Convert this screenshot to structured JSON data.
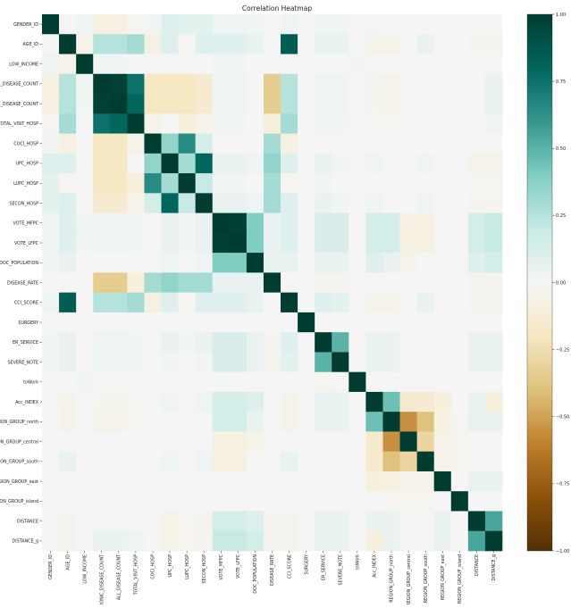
{
  "chart_data": {
    "type": "heatmap",
    "title": "Correlation Heatmap",
    "labels": [
      "GENDER_ID",
      "AGE_ID",
      "LOW_INCOME",
      "CHRONIC_DISEASE_COUNT",
      "ALL_DISEASE_COUNT",
      "TOTAL_VISIT_HOSP",
      "COCI_HOSP",
      "UPC_HOSP",
      "LUPC_HOSP",
      "SECON_HOSP",
      "VOTE_MFPC",
      "VOTE_LFPC",
      "DOC_POPULATION",
      "DISEASE_RATE",
      "CCI_SCORE",
      "SURGERY",
      "ER_SERVICE",
      "SEVERE_NOTE",
      "toWork",
      "Acc_INDEX",
      "REGION_GROUP_north",
      "REGION_GROUP_central",
      "REGION_GROUP_south",
      "REGION_GROUP_east",
      "REGION_GROUP_island",
      "DISTANCE",
      "DISTANCE_g"
    ],
    "colorbar": {
      "min": -1.0,
      "max": 1.0,
      "ticks": [
        "1.00",
        "0.75",
        "0.50",
        "0.25",
        "0.00",
        "−0.25",
        "−0.50",
        "−0.75",
        "−1.00"
      ]
    },
    "colormap": [
      "#543005",
      "#8c510a",
      "#bf812d",
      "#dfc27d",
      "#f6e8c3",
      "#f5f5f5",
      "#c7eae5",
      "#80cdc1",
      "#35978f",
      "#01665e",
      "#003c30"
    ],
    "values": [
      [
        1.0,
        0.0,
        0.03,
        -0.08,
        -0.08,
        -0.02,
        0.02,
        0.1,
        0.08,
        0.08,
        0.03,
        0.03,
        0.02,
        0.0,
        0.03,
        0.0,
        0.02,
        0.02,
        0.0,
        0.01,
        0.0,
        0.0,
        0.0,
        0.0,
        0.0,
        0.0,
        0.0
      ],
      [
        0.0,
        1.0,
        -0.05,
        0.25,
        0.25,
        0.3,
        -0.08,
        0.1,
        -0.02,
        0.1,
        0.1,
        0.1,
        0.05,
        0.0,
        0.85,
        0.0,
        0.05,
        0.05,
        0.0,
        -0.05,
        -0.05,
        0.0,
        0.05,
        0.0,
        0.0,
        -0.03,
        -0.03
      ],
      [
        0.03,
        -0.05,
        1.0,
        0.02,
        0.02,
        0.0,
        0.0,
        0.0,
        0.0,
        0.0,
        0.02,
        0.02,
        0.0,
        0.0,
        0.0,
        0.0,
        0.0,
        0.0,
        0.02,
        0.0,
        0.0,
        0.0,
        0.0,
        0.0,
        0.0,
        0.0,
        0.0
      ],
      [
        -0.08,
        0.25,
        0.02,
        1.0,
        0.98,
        0.75,
        -0.2,
        -0.2,
        -0.2,
        -0.15,
        0.03,
        0.03,
        0.0,
        -0.35,
        0.25,
        0.0,
        0.03,
        0.03,
        0.0,
        -0.03,
        -0.05,
        0.0,
        0.0,
        0.0,
        0.0,
        0.0,
        0.05
      ],
      [
        -0.08,
        0.25,
        0.02,
        0.98,
        1.0,
        0.8,
        -0.2,
        -0.2,
        -0.2,
        -0.15,
        0.03,
        0.03,
        0.0,
        -0.35,
        0.25,
        0.0,
        0.03,
        0.03,
        0.0,
        -0.03,
        -0.05,
        0.0,
        0.0,
        0.0,
        0.0,
        0.0,
        0.05
      ],
      [
        -0.02,
        0.3,
        0.0,
        0.75,
        0.8,
        1.0,
        -0.05,
        0.0,
        -0.1,
        -0.05,
        0.02,
        0.02,
        0.0,
        -0.1,
        0.3,
        0.0,
        0.02,
        0.02,
        0.0,
        -0.02,
        -0.02,
        0.0,
        0.0,
        0.0,
        0.0,
        0.0,
        0.03
      ],
      [
        0.02,
        -0.08,
        0.0,
        -0.2,
        -0.2,
        -0.05,
        1.0,
        0.35,
        0.65,
        0.15,
        0.0,
        0.0,
        0.0,
        0.3,
        -0.08,
        0.0,
        0.0,
        0.0,
        0.0,
        0.0,
        0.0,
        0.0,
        0.0,
        0.0,
        0.0,
        0.0,
        0.0
      ],
      [
        0.1,
        0.1,
        0.0,
        -0.2,
        -0.2,
        0.0,
        0.35,
        1.0,
        0.3,
        0.8,
        0.05,
        0.05,
        0.03,
        0.35,
        0.1,
        0.0,
        0.05,
        0.02,
        0.0,
        0.03,
        0.0,
        0.0,
        0.03,
        0.0,
        0.0,
        -0.05,
        -0.05
      ],
      [
        0.08,
        -0.02,
        0.0,
        -0.2,
        -0.2,
        -0.1,
        0.65,
        0.3,
        1.0,
        0.2,
        0.02,
        0.02,
        0.0,
        0.3,
        -0.02,
        0.0,
        0.02,
        0.0,
        0.0,
        0.0,
        0.0,
        0.0,
        0.0,
        0.0,
        0.0,
        -0.02,
        -0.02
      ],
      [
        0.08,
        0.1,
        0.0,
        -0.15,
        -0.15,
        -0.05,
        0.15,
        0.8,
        0.2,
        1.0,
        0.05,
        0.05,
        0.03,
        0.3,
        0.1,
        0.0,
        0.05,
        0.02,
        0.0,
        0.03,
        0.0,
        0.0,
        0.03,
        0.0,
        0.0,
        -0.03,
        -0.03
      ],
      [
        0.03,
        0.1,
        0.02,
        0.03,
        0.03,
        0.02,
        0.0,
        0.05,
        0.02,
        0.05,
        1.0,
        0.98,
        0.4,
        0.05,
        0.1,
        0.0,
        0.12,
        0.12,
        0.0,
        0.15,
        0.15,
        -0.08,
        -0.08,
        0.0,
        0.0,
        0.15,
        0.2
      ],
      [
        0.03,
        0.1,
        0.02,
        0.03,
        0.03,
        0.02,
        0.0,
        0.05,
        0.02,
        0.05,
        0.98,
        1.0,
        0.4,
        0.05,
        0.1,
        0.0,
        0.12,
        0.12,
        0.0,
        0.15,
        0.15,
        -0.08,
        -0.08,
        0.0,
        0.0,
        0.15,
        0.2
      ],
      [
        0.02,
        0.05,
        0.0,
        0.0,
        0.0,
        0.0,
        0.0,
        0.03,
        0.0,
        0.03,
        0.4,
        0.4,
        1.0,
        0.05,
        0.05,
        0.0,
        0.05,
        0.05,
        0.0,
        0.1,
        0.05,
        -0.05,
        0.0,
        0.0,
        0.0,
        0.1,
        0.15
      ],
      [
        0.0,
        0.0,
        0.0,
        -0.35,
        -0.35,
        -0.1,
        0.3,
        0.35,
        0.3,
        0.3,
        0.05,
        0.05,
        0.05,
        1.0,
        0.0,
        0.0,
        -0.03,
        -0.03,
        0.0,
        0.0,
        0.0,
        0.0,
        0.0,
        0.0,
        0.0,
        -0.03,
        -0.03
      ],
      [
        0.03,
        0.85,
        0.0,
        0.25,
        0.25,
        0.3,
        -0.08,
        0.1,
        -0.02,
        0.1,
        0.1,
        0.1,
        0.05,
        0.0,
        1.0,
        0.0,
        0.1,
        0.08,
        0.0,
        -0.05,
        -0.05,
        0.0,
        0.05,
        0.0,
        0.0,
        -0.03,
        -0.03
      ],
      [
        0.0,
        0.0,
        0.0,
        0.0,
        0.0,
        0.0,
        0.0,
        0.0,
        0.0,
        0.0,
        0.0,
        0.0,
        0.0,
        0.0,
        0.0,
        1.0,
        0.0,
        0.0,
        0.0,
        0.0,
        0.0,
        0.0,
        0.0,
        0.0,
        0.0,
        0.0,
        0.0
      ],
      [
        0.02,
        0.05,
        0.0,
        0.03,
        0.03,
        0.02,
        0.0,
        0.05,
        0.02,
        0.05,
        0.12,
        0.12,
        0.05,
        -0.03,
        0.1,
        0.0,
        1.0,
        0.5,
        -0.02,
        0.05,
        0.05,
        0.0,
        0.0,
        0.0,
        0.0,
        0.05,
        0.05
      ],
      [
        0.02,
        0.05,
        0.0,
        0.03,
        0.03,
        0.02,
        0.0,
        0.02,
        0.0,
        0.02,
        0.12,
        0.12,
        0.05,
        -0.03,
        0.08,
        0.0,
        0.5,
        1.0,
        0.0,
        0.05,
        0.05,
        0.0,
        0.0,
        0.0,
        0.0,
        0.05,
        0.05
      ],
      [
        0.0,
        0.0,
        0.02,
        0.0,
        0.0,
        0.0,
        0.0,
        0.0,
        0.0,
        0.0,
        0.0,
        0.0,
        0.0,
        0.0,
        0.0,
        0.0,
        -0.02,
        0.0,
        1.0,
        0.0,
        0.0,
        0.0,
        0.0,
        0.0,
        0.0,
        0.0,
        0.0
      ],
      [
        0.01,
        -0.05,
        0.0,
        -0.03,
        -0.03,
        -0.02,
        0.0,
        0.03,
        0.0,
        0.03,
        0.15,
        0.15,
        0.1,
        0.0,
        -0.05,
        0.0,
        0.05,
        0.05,
        0.0,
        1.0,
        0.45,
        -0.15,
        -0.15,
        -0.1,
        0.0,
        0.05,
        -0.1
      ],
      [
        0.0,
        -0.05,
        0.0,
        -0.05,
        -0.05,
        -0.02,
        0.0,
        0.0,
        0.0,
        0.0,
        0.15,
        0.15,
        0.05,
        0.0,
        -0.05,
        0.0,
        0.05,
        0.05,
        0.0,
        0.45,
        1.0,
        -0.55,
        -0.4,
        -0.08,
        -0.02,
        0.05,
        0.05
      ],
      [
        0.0,
        0.0,
        0.0,
        0.0,
        0.0,
        0.0,
        0.0,
        0.0,
        0.0,
        0.0,
        -0.08,
        -0.08,
        -0.05,
        0.0,
        0.0,
        0.0,
        0.0,
        0.0,
        0.0,
        -0.15,
        -0.55,
        1.0,
        -0.3,
        -0.05,
        -0.02,
        0.0,
        0.0
      ],
      [
        0.0,
        0.05,
        0.0,
        0.0,
        0.0,
        0.0,
        0.0,
        0.03,
        0.0,
        0.03,
        -0.08,
        -0.08,
        0.0,
        0.0,
        0.05,
        0.0,
        0.0,
        0.0,
        0.0,
        -0.15,
        -0.4,
        -0.3,
        1.0,
        -0.05,
        -0.02,
        0.0,
        0.0
      ],
      [
        0.0,
        0.0,
        0.0,
        0.0,
        0.0,
        0.0,
        0.0,
        0.0,
        0.0,
        0.0,
        0.0,
        0.0,
        0.0,
        0.0,
        0.0,
        0.0,
        0.0,
        0.0,
        0.0,
        -0.1,
        -0.08,
        -0.05,
        -0.05,
        1.0,
        0.0,
        0.05,
        0.05
      ],
      [
        0.0,
        0.0,
        0.0,
        0.0,
        0.0,
        0.0,
        0.0,
        0.0,
        0.0,
        0.0,
        0.0,
        0.0,
        0.0,
        0.0,
        0.0,
        0.0,
        0.0,
        0.0,
        0.0,
        0.0,
        -0.02,
        -0.02,
        -0.02,
        0.0,
        1.0,
        0.0,
        0.0
      ],
      [
        0.0,
        -0.03,
        0.0,
        0.0,
        0.0,
        0.0,
        0.0,
        -0.05,
        -0.02,
        -0.03,
        0.15,
        0.15,
        0.1,
        -0.03,
        -0.03,
        0.0,
        0.05,
        0.05,
        0.0,
        0.05,
        0.05,
        0.0,
        0.0,
        0.05,
        0.0,
        1.0,
        0.55
      ],
      [
        0.0,
        -0.03,
        0.0,
        0.05,
        0.05,
        0.03,
        0.0,
        -0.05,
        -0.02,
        -0.03,
        0.2,
        0.2,
        0.15,
        -0.03,
        -0.03,
        0.0,
        0.05,
        0.05,
        0.0,
        -0.1,
        0.05,
        0.0,
        0.0,
        0.05,
        0.0,
        0.55,
        1.0
      ]
    ]
  }
}
